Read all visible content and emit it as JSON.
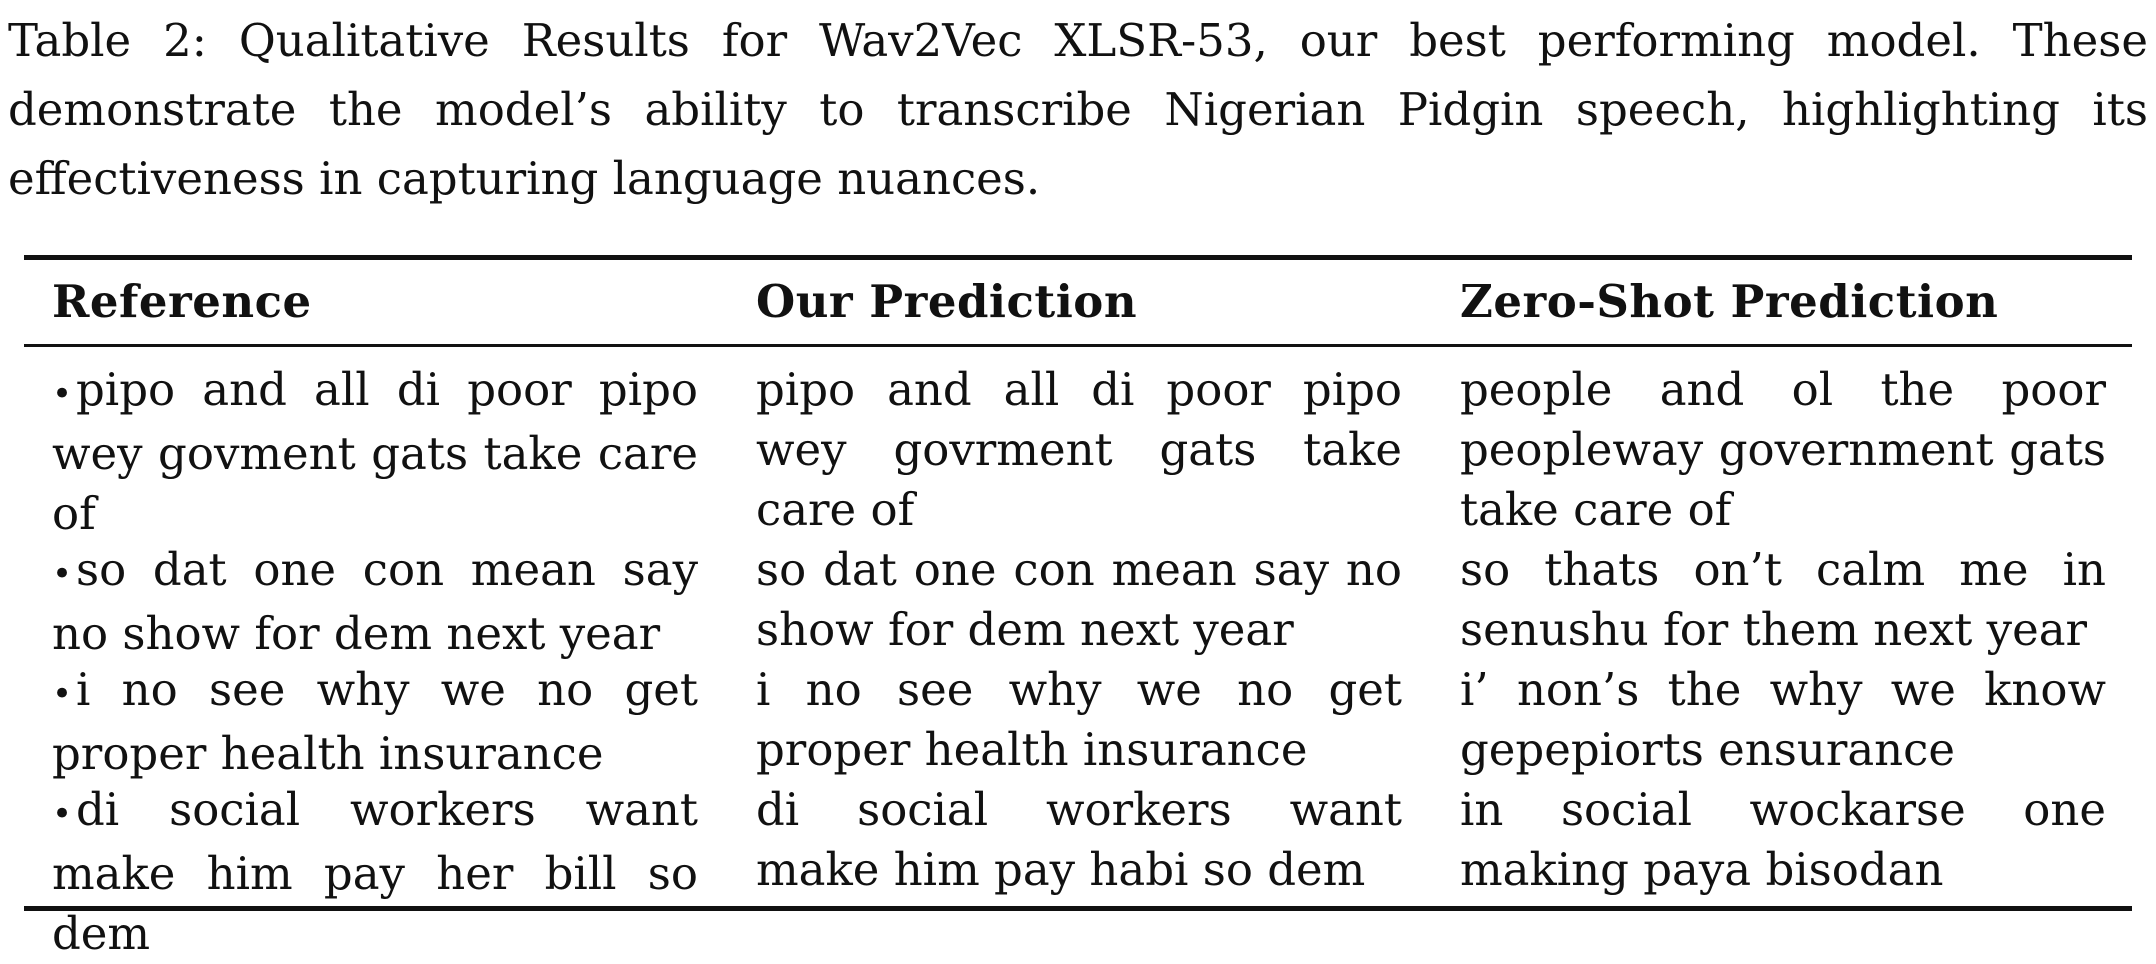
{
  "caption": "Table 2: Qualitative Results for Wav2Vec XLSR-53, our best performing model. These demonstrate the model’s ability to transcribe Nigerian Pidgin speech, highlighting its effectiveness in capturing language nuances.",
  "table": {
    "headers": [
      "Reference",
      "Our Prediction",
      "Zero-Shot Prediction"
    ],
    "bullet": "•",
    "rows": [
      {
        "reference": "pipo and all di poor pipo wey govment gats take care of",
        "our_prediction": "pipo and all di poor pipo wey govrment gats take care of",
        "zero_shot_prediction": "people and ol the poor peopleway government gats take care of"
      },
      {
        "reference": "so dat one con mean say no show for dem next year",
        "our_prediction": "so dat one con mean say no show for dem next year",
        "zero_shot_prediction": "so thats on’t calm me in senushu for them next year"
      },
      {
        "reference": "i no see why we no get proper health insurance",
        "our_prediction": "i no see why we no get proper health insurance",
        "zero_shot_prediction": "i’ non’s the why we know gepepiorts ensurance"
      },
      {
        "reference": "di social workers want make him pay her bill so dem",
        "our_prediction": "di social workers want make him pay habi so dem",
        "zero_shot_prediction": "in social wockarse one making paya bisodan"
      }
    ]
  }
}
